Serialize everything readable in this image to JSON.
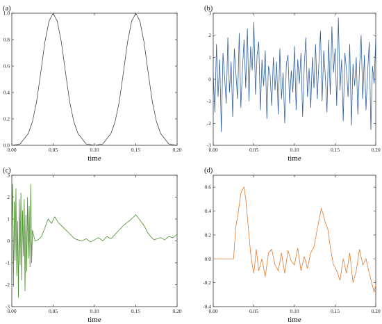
{
  "chart_data": [
    {
      "type": "line",
      "panel_label": "(a)",
      "xlabel": "time",
      "ylabel": "",
      "xlim": [
        0,
        0.2
      ],
      "ylim": [
        0,
        1.0
      ],
      "x_ticks": [
        "0.00",
        "0.05",
        "0.10",
        "0.15",
        "0.20"
      ],
      "y_ticks": [
        "0.0",
        "0.2",
        "0.4",
        "0.6",
        "0.8",
        "1.0"
      ],
      "color": "#444444",
      "series": [
        {
          "x": [
            0.0,
            0.01,
            0.02,
            0.025,
            0.03,
            0.035,
            0.04,
            0.045,
            0.05,
            0.055,
            0.06,
            0.065,
            0.07,
            0.075,
            0.08,
            0.09,
            0.1,
            0.11,
            0.12,
            0.125,
            0.13,
            0.135,
            0.14,
            0.145,
            0.15,
            0.155,
            0.16,
            0.165,
            0.17,
            0.175,
            0.18,
            0.19,
            0.2
          ],
          "values": [
            0.0,
            0.01,
            0.09,
            0.18,
            0.33,
            0.55,
            0.78,
            0.94,
            1.0,
            0.94,
            0.78,
            0.55,
            0.33,
            0.18,
            0.09,
            0.01,
            0.0,
            0.01,
            0.09,
            0.18,
            0.33,
            0.55,
            0.78,
            0.94,
            1.0,
            0.94,
            0.78,
            0.55,
            0.33,
            0.18,
            0.09,
            0.01,
            0.0
          ]
        }
      ]
    },
    {
      "type": "line",
      "panel_label": "(b)",
      "xlabel": "time",
      "ylabel": "",
      "xlim": [
        0,
        0.2
      ],
      "ylim": [
        -3,
        3
      ],
      "x_ticks": [
        "0.00",
        "0.05",
        "0.10",
        "0.15",
        "0.20"
      ],
      "y_ticks": [
        "-3",
        "-2",
        "-1",
        "0",
        "1",
        "2",
        "3"
      ],
      "color": "#2f5f9e",
      "series": [
        {
          "x": [
            0.0,
            0.002,
            0.004,
            0.006,
            0.008,
            0.01,
            0.012,
            0.014,
            0.016,
            0.018,
            0.02,
            0.022,
            0.024,
            0.026,
            0.028,
            0.03,
            0.032,
            0.034,
            0.036,
            0.038,
            0.04,
            0.042,
            0.044,
            0.046,
            0.048,
            0.05,
            0.052,
            0.054,
            0.056,
            0.058,
            0.06,
            0.062,
            0.064,
            0.066,
            0.068,
            0.07,
            0.072,
            0.074,
            0.076,
            0.078,
            0.08,
            0.082,
            0.084,
            0.086,
            0.088,
            0.09,
            0.092,
            0.094,
            0.096,
            0.098,
            0.1,
            0.102,
            0.104,
            0.106,
            0.108,
            0.11,
            0.112,
            0.114,
            0.116,
            0.118,
            0.12,
            0.122,
            0.124,
            0.126,
            0.128,
            0.13,
            0.132,
            0.134,
            0.136,
            0.138,
            0.14,
            0.142,
            0.144,
            0.146,
            0.148,
            0.15,
            0.152,
            0.154,
            0.156,
            0.158,
            0.16,
            0.162,
            0.164,
            0.166,
            0.168,
            0.17,
            0.172,
            0.174,
            0.176,
            0.178,
            0.18,
            0.182,
            0.184,
            0.186,
            0.188,
            0.19,
            0.192,
            0.194,
            0.196,
            0.198,
            0.2
          ],
          "values": [
            0.3,
            -1.5,
            1.6,
            -0.8,
            0.9,
            -2.4,
            1.2,
            0.1,
            -1.1,
            1.9,
            -0.6,
            0.8,
            -1.7,
            1.4,
            0.2,
            -0.9,
            2.1,
            -1.3,
            0.5,
            1.8,
            -0.4,
            2.3,
            -1.0,
            1.5,
            0.4,
            2.6,
            -0.7,
            1.1,
            1.7,
            -1.4,
            0.9,
            -0.3,
            1.3,
            -1.8,
            0.6,
            0.2,
            -1.2,
            1.0,
            -0.5,
            0.8,
            -1.6,
            1.4,
            -0.9,
            0.3,
            -2.0,
            0.7,
            1.1,
            -1.1,
            0.4,
            -0.6,
            1.5,
            -1.4,
            0.9,
            -0.2,
            1.2,
            -1.7,
            0.6,
            1.9,
            -0.8,
            0.5,
            -1.3,
            1.0,
            -0.4,
            1.6,
            -0.9,
            0.7,
            2.2,
            -1.0,
            1.3,
            0.1,
            -1.5,
            1.8,
            -0.7,
            2.4,
            0.3,
            1.4,
            -1.2,
            2.8,
            -0.5,
            0.9,
            -1.9,
            1.2,
            0.4,
            -0.8,
            1.6,
            -2.1,
            0.7,
            -0.3,
            1.0,
            -1.6,
            0.5,
            2.0,
            -0.9,
            1.1,
            -1.4,
            0.3,
            1.7,
            -2.3,
            0.6,
            -0.2,
            1.9
          ]
        }
      ]
    },
    {
      "type": "line",
      "panel_label": "(c)",
      "xlabel": "time",
      "ylabel": "",
      "xlim": [
        0,
        0.2
      ],
      "ylim": [
        -3,
        3
      ],
      "x_ticks": [
        "0.00",
        "0.05",
        "0.10",
        "0.15",
        "0.20"
      ],
      "y_ticks": [
        "-3",
        "-2",
        "-1",
        "0",
        "1",
        "2",
        "3"
      ],
      "color": "#4a8f2a",
      "series": [
        {
          "x": [
            0.0,
            0.001,
            0.002,
            0.003,
            0.004,
            0.005,
            0.006,
            0.007,
            0.008,
            0.009,
            0.01,
            0.011,
            0.012,
            0.013,
            0.014,
            0.015,
            0.016,
            0.017,
            0.018,
            0.019,
            0.02,
            0.021,
            0.022,
            0.023,
            0.024,
            0.025,
            0.028,
            0.032,
            0.036,
            0.04,
            0.044,
            0.048,
            0.052,
            0.056,
            0.06,
            0.064,
            0.068,
            0.072,
            0.076,
            0.08,
            0.085,
            0.09,
            0.095,
            0.1,
            0.105,
            0.11,
            0.115,
            0.12,
            0.125,
            0.13,
            0.135,
            0.14,
            0.145,
            0.15,
            0.153,
            0.156,
            0.16,
            0.164,
            0.168,
            0.172,
            0.176,
            0.18,
            0.185,
            0.19,
            0.195,
            0.2
          ],
          "values": [
            0.2,
            2.6,
            -2.1,
            1.8,
            -0.9,
            2.4,
            -1.6,
            0.9,
            -2.6,
            1.9,
            -1.1,
            2.2,
            -1.8,
            1.4,
            -0.7,
            1.9,
            -2.3,
            1.2,
            -1.4,
            2.0,
            -0.8,
            1.6,
            -1.2,
            2.6,
            -1.0,
            0.5,
            0.0,
            0.05,
            0.2,
            0.6,
            1.0,
            0.8,
            1.1,
            0.85,
            0.7,
            0.55,
            0.4,
            0.25,
            0.1,
            0.05,
            0.0,
            0.1,
            -0.05,
            0.05,
            0.15,
            0.0,
            0.2,
            0.1,
            0.3,
            0.5,
            0.7,
            0.85,
            1.0,
            1.2,
            1.05,
            0.9,
            0.7,
            0.4,
            0.2,
            0.05,
            0.1,
            0.15,
            0.05,
            0.2,
            0.15,
            0.3
          ]
        }
      ]
    },
    {
      "type": "line",
      "panel_label": "(d)",
      "xlabel": "time",
      "ylabel": "",
      "xlim": [
        0,
        0.2
      ],
      "ylim": [
        -0.4,
        0.7
      ],
      "x_ticks": [
        "0.00",
        "0.05",
        "0.10",
        "0.15",
        "0.20"
      ],
      "y_ticks": [
        "-0.4",
        "-0.2",
        "0.0",
        "0.2",
        "0.4",
        "0.6"
      ],
      "color": "#e0782e",
      "series": [
        {
          "x": [
            0.0,
            0.025,
            0.026,
            0.028,
            0.03,
            0.032,
            0.034,
            0.036,
            0.038,
            0.04,
            0.042,
            0.044,
            0.046,
            0.048,
            0.05,
            0.053,
            0.056,
            0.06,
            0.064,
            0.068,
            0.072,
            0.076,
            0.08,
            0.084,
            0.088,
            0.092,
            0.096,
            0.1,
            0.104,
            0.108,
            0.112,
            0.116,
            0.12,
            0.124,
            0.128,
            0.131,
            0.133,
            0.135,
            0.138,
            0.141,
            0.144,
            0.148,
            0.152,
            0.156,
            0.16,
            0.164,
            0.168,
            0.172,
            0.176,
            0.18,
            0.184,
            0.188,
            0.192,
            0.195,
            0.198,
            0.2
          ],
          "values": [
            0.0,
            0.0,
            0.1,
            0.28,
            0.35,
            0.45,
            0.55,
            0.58,
            0.6,
            0.5,
            0.35,
            0.2,
            0.05,
            -0.05,
            -0.12,
            0.08,
            -0.1,
            0.0,
            -0.15,
            0.05,
            0.08,
            -0.05,
            -0.1,
            0.05,
            -0.12,
            0.07,
            -0.02,
            -0.05,
            0.09,
            -0.1,
            0.02,
            -0.08,
            0.05,
            0.1,
            0.25,
            0.35,
            0.42,
            0.38,
            0.3,
            0.25,
            0.1,
            -0.05,
            -0.1,
            -0.18,
            0.0,
            -0.12,
            0.05,
            -0.2,
            -0.1,
            0.08,
            -0.05,
            0.0,
            -0.12,
            -0.2,
            -0.28,
            -0.22
          ]
        }
      ]
    }
  ]
}
